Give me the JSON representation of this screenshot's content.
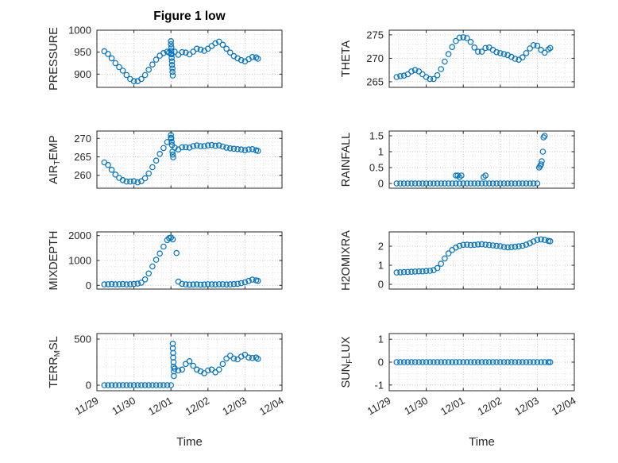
{
  "figure": {
    "title": "Figure 1 low"
  },
  "axis_style": {
    "marker_color": "#0072BD",
    "axis_color": "#262626",
    "grid_color": "#c2c2c2",
    "minor_grid_color": "#dedede"
  },
  "x_axis": {
    "label": "Time",
    "tick_labels": [
      "11/29",
      "11/30",
      "12/01",
      "12/02",
      "12/03",
      "12/04"
    ],
    "tick_values": [
      0,
      1,
      2,
      3,
      4,
      5
    ],
    "lim": [
      0,
      5
    ],
    "minor_step": 0.25
  },
  "chart_data": [
    {
      "type": "scatter",
      "name": "PRESSURE",
      "ylabel": "PRESSURE",
      "ylabel_parts": [
        {
          "text": "PRESSURE"
        }
      ],
      "ylim": [
        870,
        1000
      ],
      "yticks": [
        900,
        950,
        1000
      ],
      "y_minor_step": 10,
      "x": [
        0.2,
        0.3,
        0.4,
        0.5,
        0.6,
        0.7,
        0.8,
        0.9,
        1.0,
        1.1,
        1.2,
        1.3,
        1.4,
        1.5,
        1.6,
        1.7,
        1.8,
        1.9,
        1.95,
        2.0,
        2.0,
        2.0,
        2.01,
        2.01,
        2.02,
        2.02,
        2.03,
        2.03,
        2.04,
        2.04,
        2.05,
        2.1,
        2.2,
        2.3,
        2.4,
        2.5,
        2.6,
        2.7,
        2.8,
        2.9,
        3.0,
        3.1,
        3.2,
        3.3,
        3.4,
        3.5,
        3.6,
        3.7,
        3.8,
        3.9,
        4.0,
        4.1,
        4.2,
        4.3,
        4.35
      ],
      "y": [
        952,
        946,
        936,
        925,
        916,
        908,
        898,
        889,
        884,
        884,
        889,
        898,
        910,
        922,
        933,
        942,
        948,
        951,
        949,
        946,
        975,
        968,
        961,
        953,
        945,
        937,
        929,
        921,
        913,
        905,
        897,
        951,
        944,
        950,
        949,
        945,
        951,
        958,
        956,
        953,
        958,
        964,
        970,
        974,
        967,
        958,
        949,
        941,
        936,
        932,
        929,
        934,
        939,
        938,
        935
      ]
    },
    {
      "type": "scatter",
      "name": "AIR_TEMP",
      "ylabel": "AIR_TEMP",
      "ylabel_parts": [
        {
          "text": "AIR"
        },
        {
          "text": "T",
          "sub": true
        },
        {
          "text": "EMP"
        }
      ],
      "ylim": [
        256.5,
        272
      ],
      "yticks": [
        260,
        265,
        270
      ],
      "y_minor_step": 1,
      "x": [
        0.2,
        0.3,
        0.4,
        0.5,
        0.6,
        0.7,
        0.8,
        0.9,
        1.0,
        1.1,
        1.2,
        1.3,
        1.4,
        1.5,
        1.6,
        1.7,
        1.8,
        1.9,
        2.0,
        2.0,
        2.01,
        2.02,
        2.03,
        2.04,
        2.05,
        2.06,
        2.1,
        2.2,
        2.3,
        2.4,
        2.5,
        2.6,
        2.7,
        2.8,
        2.9,
        3.0,
        3.1,
        3.2,
        3.3,
        3.4,
        3.5,
        3.6,
        3.7,
        3.8,
        3.9,
        4.0,
        4.1,
        4.2,
        4.3,
        4.35
      ],
      "y": [
        263.5,
        262.8,
        261.5,
        260.2,
        259.3,
        258.7,
        258.3,
        258.3,
        258.4,
        258.1,
        258.4,
        259.2,
        260.5,
        262.2,
        264,
        265.8,
        267.4,
        269,
        270.2,
        270.9,
        270,
        269.1,
        268.2,
        266.4,
        265.6,
        264.9,
        267.5,
        267,
        267.6,
        267.6,
        267.5,
        267.9,
        268.1,
        267.9,
        267.9,
        268.1,
        268.2,
        268,
        268.1,
        267.8,
        267.5,
        267.3,
        267.2,
        267.1,
        267,
        266.8,
        267,
        267.1,
        266.8,
        266.6
      ]
    },
    {
      "type": "scatter",
      "name": "MIXDEPTH",
      "ylabel": "MIXDEPTH",
      "ylabel_parts": [
        {
          "text": "MIXDEPTH"
        }
      ],
      "ylim": [
        -150,
        2150
      ],
      "yticks": [
        0,
        1000,
        2000
      ],
      "y_minor_step": 250,
      "x": [
        0.2,
        0.3,
        0.4,
        0.5,
        0.6,
        0.7,
        0.8,
        0.9,
        1.0,
        1.1,
        1.2,
        1.3,
        1.4,
        1.5,
        1.6,
        1.7,
        1.8,
        1.9,
        1.95,
        2.0,
        2.05,
        2.15,
        2.2,
        2.3,
        2.4,
        2.5,
        2.6,
        2.7,
        2.8,
        2.9,
        3.0,
        3.1,
        3.2,
        3.3,
        3.4,
        3.5,
        3.6,
        3.7,
        3.8,
        3.9,
        4.0,
        4.1,
        4.2,
        4.3,
        4.35
      ],
      "y": [
        40,
        45,
        50,
        40,
        45,
        50,
        40,
        45,
        55,
        70,
        110,
        240,
        480,
        760,
        1030,
        1280,
        1560,
        1820,
        1900,
        1920,
        1850,
        1300,
        150,
        60,
        40,
        30,
        35,
        40,
        30,
        35,
        45,
        40,
        35,
        45,
        45,
        35,
        40,
        50,
        60,
        85,
        120,
        180,
        230,
        200,
        180
      ]
    },
    {
      "type": "scatter",
      "name": "TERR_MSL",
      "ylabel": "TERR_MSL",
      "ylabel_parts": [
        {
          "text": "TERR"
        },
        {
          "text": "M",
          "sub": true
        },
        {
          "text": "SL"
        }
      ],
      "ylim": [
        -60,
        560
      ],
      "yticks": [
        0,
        500
      ],
      "y_minor_step": 100,
      "x": [
        0.2,
        0.3,
        0.4,
        0.5,
        0.6,
        0.7,
        0.8,
        0.9,
        1.0,
        1.1,
        1.2,
        1.3,
        1.4,
        1.5,
        1.6,
        1.7,
        1.8,
        1.9,
        2.0,
        2.05,
        2.05,
        2.06,
        2.06,
        2.07,
        2.07,
        2.08,
        2.08,
        2.1,
        2.2,
        2.3,
        2.4,
        2.5,
        2.6,
        2.7,
        2.8,
        2.9,
        3.0,
        3.1,
        3.2,
        3.3,
        3.4,
        3.5,
        3.6,
        3.7,
        3.8,
        3.9,
        4.0,
        4.1,
        4.2,
        4.3,
        4.35
      ],
      "y": [
        0,
        0,
        0,
        0,
        0,
        0,
        0,
        0,
        0,
        0,
        0,
        0,
        0,
        0,
        0,
        0,
        0,
        0,
        0,
        450,
        400,
        350,
        300,
        250,
        200,
        150,
        100,
        180,
        160,
        170,
        230,
        260,
        210,
        170,
        150,
        130,
        160,
        170,
        140,
        170,
        230,
        290,
        320,
        290,
        280,
        310,
        330,
        300,
        295,
        300,
        285
      ]
    },
    {
      "type": "scatter",
      "name": "THETA",
      "ylabel": "THETA",
      "ylabel_parts": [
        {
          "text": "THETA"
        }
      ],
      "ylim": [
        263.8,
        276
      ],
      "yticks": [
        265,
        270,
        275
      ],
      "y_minor_step": 1,
      "x": [
        0.2,
        0.3,
        0.4,
        0.5,
        0.6,
        0.7,
        0.8,
        0.9,
        1.0,
        1.1,
        1.2,
        1.3,
        1.4,
        1.5,
        1.6,
        1.7,
        1.8,
        1.9,
        2.0,
        2.1,
        2.2,
        2.3,
        2.4,
        2.5,
        2.6,
        2.7,
        2.8,
        2.9,
        3.0,
        3.1,
        3.2,
        3.3,
        3.4,
        3.5,
        3.6,
        3.7,
        3.8,
        3.9,
        4.0,
        4.1,
        4.2,
        4.3,
        4.35
      ],
      "y": [
        266,
        266.2,
        266.3,
        266.6,
        267.2,
        267.5,
        267.2,
        266.6,
        266,
        265.6,
        265.6,
        266.4,
        267.7,
        269.3,
        270.9,
        272.4,
        273.7,
        274.4,
        274.5,
        274.3,
        273.5,
        272.3,
        271.4,
        271.4,
        272.2,
        272.3,
        271.8,
        271.3,
        271.1,
        270.9,
        270.7,
        270.3,
        269.9,
        269.7,
        270.2,
        271.1,
        272.1,
        272.8,
        272.7,
        271.8,
        271.2,
        271.9,
        272.2
      ]
    },
    {
      "type": "scatter",
      "name": "RAINFALL",
      "ylabel": "RAINFALL",
      "ylabel_parts": [
        {
          "text": "RAINFALL"
        }
      ],
      "ylim": [
        -0.15,
        1.65
      ],
      "yticks": [
        0,
        0.5,
        1,
        1.5
      ],
      "y_minor_step": 0.125,
      "x": [
        0.2,
        0.3,
        0.4,
        0.5,
        0.6,
        0.7,
        0.8,
        0.9,
        1.0,
        1.1,
        1.2,
        1.3,
        1.4,
        1.5,
        1.6,
        1.7,
        1.8,
        1.9,
        2.0,
        2.1,
        2.2,
        2.3,
        2.4,
        2.5,
        2.6,
        2.7,
        2.8,
        2.9,
        3.0,
        3.1,
        3.2,
        3.3,
        3.4,
        3.5,
        3.6,
        3.7,
        3.8,
        3.9,
        4.0,
        1.8,
        1.85,
        1.9,
        1.95,
        2.55,
        2.6,
        4.05,
        4.08,
        4.1,
        4.12,
        4.15,
        4.17,
        4.2
      ],
      "y": [
        0,
        0,
        0,
        0,
        0,
        0,
        0,
        0,
        0,
        0,
        0,
        0,
        0,
        0,
        0,
        0,
        0,
        0,
        0,
        0,
        0,
        0,
        0,
        0,
        0,
        0,
        0,
        0,
        0,
        0,
        0,
        0,
        0,
        0,
        0,
        0,
        0,
        0,
        0,
        0.25,
        0.25,
        0.2,
        0.25,
        0.2,
        0.25,
        0.5,
        0.55,
        0.6,
        0.7,
        1.0,
        1.45,
        1.5
      ]
    },
    {
      "type": "scatter",
      "name": "H2OMIXRA",
      "ylabel": "H2OMIXRA",
      "ylabel_parts": [
        {
          "text": "H2OMIXRA"
        }
      ],
      "ylim": [
        -0.25,
        2.75
      ],
      "yticks": [
        0,
        1,
        2
      ],
      "y_minor_step": 0.25,
      "x": [
        0.2,
        0.3,
        0.4,
        0.5,
        0.6,
        0.7,
        0.8,
        0.9,
        1.0,
        1.1,
        1.2,
        1.3,
        1.4,
        1.5,
        1.6,
        1.7,
        1.8,
        1.9,
        2.0,
        2.1,
        2.2,
        2.3,
        2.4,
        2.5,
        2.6,
        2.7,
        2.8,
        2.9,
        3.0,
        3.1,
        3.2,
        3.3,
        3.4,
        3.5,
        3.6,
        3.7,
        3.8,
        3.9,
        4.0,
        4.1,
        4.2,
        4.3,
        4.35
      ],
      "y": [
        0.62,
        0.63,
        0.64,
        0.65,
        0.66,
        0.67,
        0.68,
        0.68,
        0.7,
        0.71,
        0.74,
        0.85,
        1.08,
        1.36,
        1.62,
        1.8,
        1.93,
        2.02,
        2.07,
        2.08,
        2.06,
        2.07,
        2.09,
        2.1,
        2.08,
        2.06,
        2.04,
        2.02,
        2,
        1.96,
        1.94,
        1.95,
        1.97,
        1.99,
        2.02,
        2.08,
        2.16,
        2.25,
        2.33,
        2.36,
        2.33,
        2.28,
        2.26
      ]
    },
    {
      "type": "scatter",
      "name": "SUN_FLUX",
      "ylabel": "SUN_FLUX",
      "ylabel_parts": [
        {
          "text": "SUN"
        },
        {
          "text": "F",
          "sub": true
        },
        {
          "text": "LUX"
        }
      ],
      "ylim": [
        -1.25,
        1.25
      ],
      "yticks": [
        -1,
        0,
        1
      ],
      "y_minor_step": 0.25,
      "x": [
        0.2,
        0.3,
        0.4,
        0.5,
        0.6,
        0.7,
        0.8,
        0.9,
        1.0,
        1.1,
        1.2,
        1.3,
        1.4,
        1.5,
        1.6,
        1.7,
        1.8,
        1.9,
        2.0,
        2.1,
        2.2,
        2.3,
        2.4,
        2.5,
        2.6,
        2.7,
        2.8,
        2.9,
        3.0,
        3.1,
        3.2,
        3.3,
        3.4,
        3.5,
        3.6,
        3.7,
        3.8,
        3.9,
        4.0,
        4.1,
        4.2,
        4.3,
        4.35
      ],
      "y": [
        0,
        0,
        0,
        0,
        0,
        0,
        0,
        0,
        0,
        0,
        0,
        0,
        0,
        0,
        0,
        0,
        0,
        0,
        0,
        0,
        0,
        0,
        0,
        0,
        0,
        0,
        0,
        0,
        0,
        0,
        0,
        0,
        0,
        0,
        0,
        0,
        0,
        0,
        0,
        0,
        0,
        0,
        0
      ]
    }
  ]
}
